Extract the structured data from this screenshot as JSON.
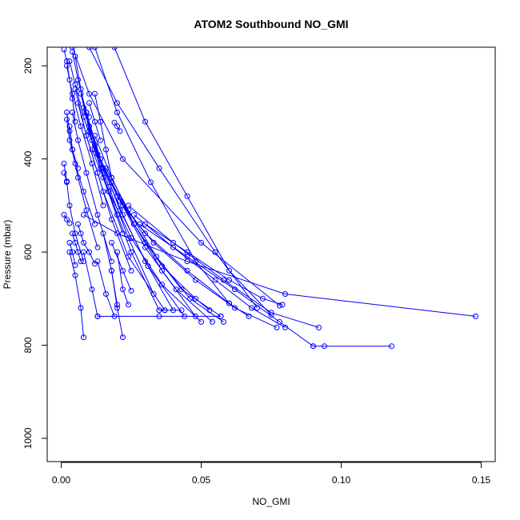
{
  "chart_data": {
    "type": "line",
    "title": "ATOM2 Southbound NO_GMI",
    "xlabel": "NO_GMI",
    "ylabel": "Pressure (mbar)",
    "xlim": [
      -0.005,
      0.155
    ],
    "ylim": [
      1050,
      160
    ],
    "y_reversed": true,
    "x_ticks": [
      0.0,
      0.05,
      0.1,
      0.15
    ],
    "x_tick_labels": [
      "0.00",
      "0.05",
      "0.10",
      "0.15"
    ],
    "y_ticks": [
      200,
      400,
      600,
      800,
      1000
    ],
    "y_tick_labels": [
      "200",
      "400",
      "600",
      "800",
      "1000"
    ],
    "series_color": "#0000ff",
    "marker": "open-circle",
    "grid": false,
    "series": [
      {
        "x": [
          0.001,
          0.002,
          0.003,
          0.004,
          0.005
        ],
        "y": [
          165,
          190,
          230,
          270,
          320
        ]
      },
      {
        "x": [
          0.003,
          0.005,
          0.008,
          0.012,
          0.018
        ],
        "y": [
          190,
          240,
          310,
          380,
          450
        ]
      },
      {
        "x": [
          0.004,
          0.006,
          0.009,
          0.014,
          0.02
        ],
        "y": [
          170,
          230,
          300,
          420,
          520
        ]
      },
      {
        "x": [
          0.002,
          0.004,
          0.007,
          0.011,
          0.015
        ],
        "y": [
          200,
          260,
          330,
          410,
          500
        ]
      },
      {
        "x": [
          0.005,
          0.007,
          0.01,
          0.015,
          0.022
        ],
        "y": [
          180,
          250,
          340,
          440,
          560
        ]
      },
      {
        "x": [
          0.002,
          0.003,
          0.005,
          0.008,
          0.012
        ],
        "y": [
          315,
          360,
          410,
          470,
          540
        ]
      },
      {
        "x": [
          0.001,
          0.002,
          0.003,
          0.005,
          0.008
        ],
        "y": [
          410,
          450,
          500,
          560,
          620
        ]
      },
      {
        "x": [
          0.003,
          0.004,
          0.006,
          0.009,
          0.013
        ],
        "y": [
          330,
          380,
          440,
          510,
          590
        ]
      },
      {
        "x": [
          0.004,
          0.006,
          0.009,
          0.013,
          0.018
        ],
        "y": [
          300,
          360,
          430,
          520,
          620
        ]
      },
      {
        "x": [
          0.006,
          0.009,
          0.013,
          0.018,
          0.025
        ],
        "y": [
          280,
          350,
          430,
          530,
          640
        ]
      },
      {
        "x": [
          0.008,
          0.012,
          0.017,
          0.024,
          0.033
        ],
        "y": [
          290,
          370,
          460,
          570,
          690
        ]
      },
      {
        "x": [
          0.01,
          0.015,
          0.022,
          0.03,
          0.04
        ],
        "y": [
          330,
          420,
          520,
          620,
          725
        ]
      },
      {
        "x": [
          0.012,
          0.018,
          0.026,
          0.036,
          0.048
        ],
        "y": [
          350,
          440,
          540,
          640,
          738
        ]
      },
      {
        "x": [
          0.009,
          0.014,
          0.021,
          0.031,
          0.044
        ],
        "y": [
          300,
          400,
          510,
          630,
          738
        ]
      },
      {
        "x": [
          0.007,
          0.011,
          0.017,
          0.025,
          0.035
        ],
        "y": [
          260,
          360,
          470,
          600,
          725
        ]
      },
      {
        "x": [
          0.005,
          0.009,
          0.015,
          0.024,
          0.037
        ],
        "y": [
          250,
          350,
          470,
          610,
          725
        ]
      },
      {
        "x": [
          0.011,
          0.017,
          0.025,
          0.036,
          0.05
        ],
        "y": [
          380,
          470,
          570,
          670,
          750
        ]
      },
      {
        "x": [
          0.014,
          0.021,
          0.03,
          0.041,
          0.054
        ],
        "y": [
          400,
          490,
          590,
          680,
          750
        ]
      },
      {
        "x": [
          0.016,
          0.024,
          0.034,
          0.046,
          0.058
        ],
        "y": [
          420,
          510,
          610,
          700,
          750
        ]
      },
      {
        "x": [
          0.013,
          0.02,
          0.03,
          0.043,
          0.057
        ],
        "y": [
          390,
          480,
          580,
          680,
          738
        ]
      },
      {
        "x": [
          0.018,
          0.026,
          0.036,
          0.048,
          0.053
        ],
        "y": [
          450,
          540,
          630,
          700,
          725
        ]
      },
      {
        "x": [
          0.02,
          0.03,
          0.045,
          0.06,
          0.067
        ],
        "y": [
          480,
          560,
          640,
          710,
          738
        ]
      },
      {
        "x": [
          0.022,
          0.033,
          0.048,
          0.062,
          0.077
        ],
        "y": [
          500,
          580,
          660,
          720,
          762
        ]
      },
      {
        "x": [
          0.026,
          0.04,
          0.055,
          0.068,
          0.08
        ],
        "y": [
          520,
          590,
          660,
          720,
          762
        ]
      },
      {
        "x": [
          0.03,
          0.045,
          0.06,
          0.072,
          0.079
        ],
        "y": [
          540,
          600,
          660,
          700,
          713
        ]
      },
      {
        "x": [
          0.024,
          0.04,
          0.058,
          0.075,
          0.092
        ],
        "y": [
          500,
          580,
          660,
          730,
          762
        ]
      },
      {
        "x": [
          0.028,
          0.045,
          0.062,
          0.078,
          0.09
        ],
        "y": [
          540,
          610,
          680,
          750,
          802
        ]
      },
      {
        "x": [
          0.09,
          0.094,
          0.118
        ],
        "y": [
          802,
          802,
          802
        ]
      },
      {
        "x": [
          0.008,
          0.02,
          0.045,
          0.08,
          0.148
        ],
        "y": [
          520,
          560,
          620,
          690,
          738
        ]
      },
      {
        "x": [
          0.004,
          0.01,
          0.022,
          0.05,
          0.078
        ],
        "y": [
          160,
          260,
          400,
          580,
          715
        ]
      },
      {
        "x": [
          0.01,
          0.02,
          0.035,
          0.055,
          0.07
        ],
        "y": [
          160,
          280,
          420,
          600,
          720
        ]
      },
      {
        "x": [
          0.012,
          0.02,
          0.032,
          0.048,
          0.06
        ],
        "y": [
          160,
          300,
          450,
          620,
          710
        ]
      },
      {
        "x": [
          0.019,
          0.03,
          0.045,
          0.06,
          0.075
        ],
        "y": [
          160,
          320,
          480,
          640,
          735
        ]
      },
      {
        "x": [
          0.003,
          0.005,
          0.007,
          0.008
        ],
        "y": [
          600,
          650,
          720,
          783
        ]
      },
      {
        "x": [
          0.003,
          0.004,
          0.005
        ],
        "y": [
          580,
          600,
          628
        ]
      },
      {
        "x": [
          0.004,
          0.005,
          0.006,
          0.007
        ],
        "y": [
          560,
          580,
          600,
          620
        ]
      },
      {
        "x": [
          0.008,
          0.011,
          0.013
        ],
        "y": [
          600,
          680,
          738
        ]
      },
      {
        "x": [
          0.015,
          0.018,
          0.02
        ],
        "y": [
          560,
          640,
          713
        ]
      },
      {
        "x": [
          0.013,
          0.016,
          0.019
        ],
        "y": [
          620,
          690,
          738
        ]
      },
      {
        "x": [
          0.018,
          0.02,
          0.022
        ],
        "y": [
          640,
          720,
          783
        ]
      },
      {
        "x": [
          0.02,
          0.022,
          0.024
        ],
        "y": [
          600,
          680,
          713
        ]
      },
      {
        "x": [
          0.018,
          0.022,
          0.025
        ],
        "y": [
          580,
          640,
          683
        ]
      },
      {
        "x": [
          0.013,
          0.035,
          0.057
        ],
        "y": [
          738,
          738,
          738
        ]
      },
      {
        "x": [
          0.035,
          0.037,
          0.043
        ],
        "y": [
          725,
          725,
          725
        ]
      },
      {
        "x": [
          0.006,
          0.007,
          0.008,
          0.01,
          0.012
        ],
        "y": [
          540,
          560,
          580,
          600,
          625
        ]
      },
      {
        "x": [
          0.001,
          0.002,
          0.003
        ],
        "y": [
          520,
          530,
          538
        ]
      },
      {
        "x": [
          0.001,
          0.002
        ],
        "y": [
          430,
          448
        ]
      },
      {
        "x": [
          0.002,
          0.003,
          0.004,
          0.006
        ],
        "y": [
          300,
          340,
          380,
          420
        ]
      },
      {
        "x": [
          0.012,
          0.014,
          0.016,
          0.018
        ],
        "y": [
          260,
          320,
          380,
          440
        ]
      },
      {
        "x": [
          0.019,
          0.02,
          0.021
        ],
        "y": [
          322,
          330,
          340
        ]
      },
      {
        "x": [
          0.01,
          0.012,
          0.014
        ],
        "y": [
          280,
          320,
          360
        ]
      },
      {
        "x": [
          0.008,
          0.009,
          0.01
        ],
        "y": [
          290,
          300,
          310
        ]
      }
    ]
  }
}
